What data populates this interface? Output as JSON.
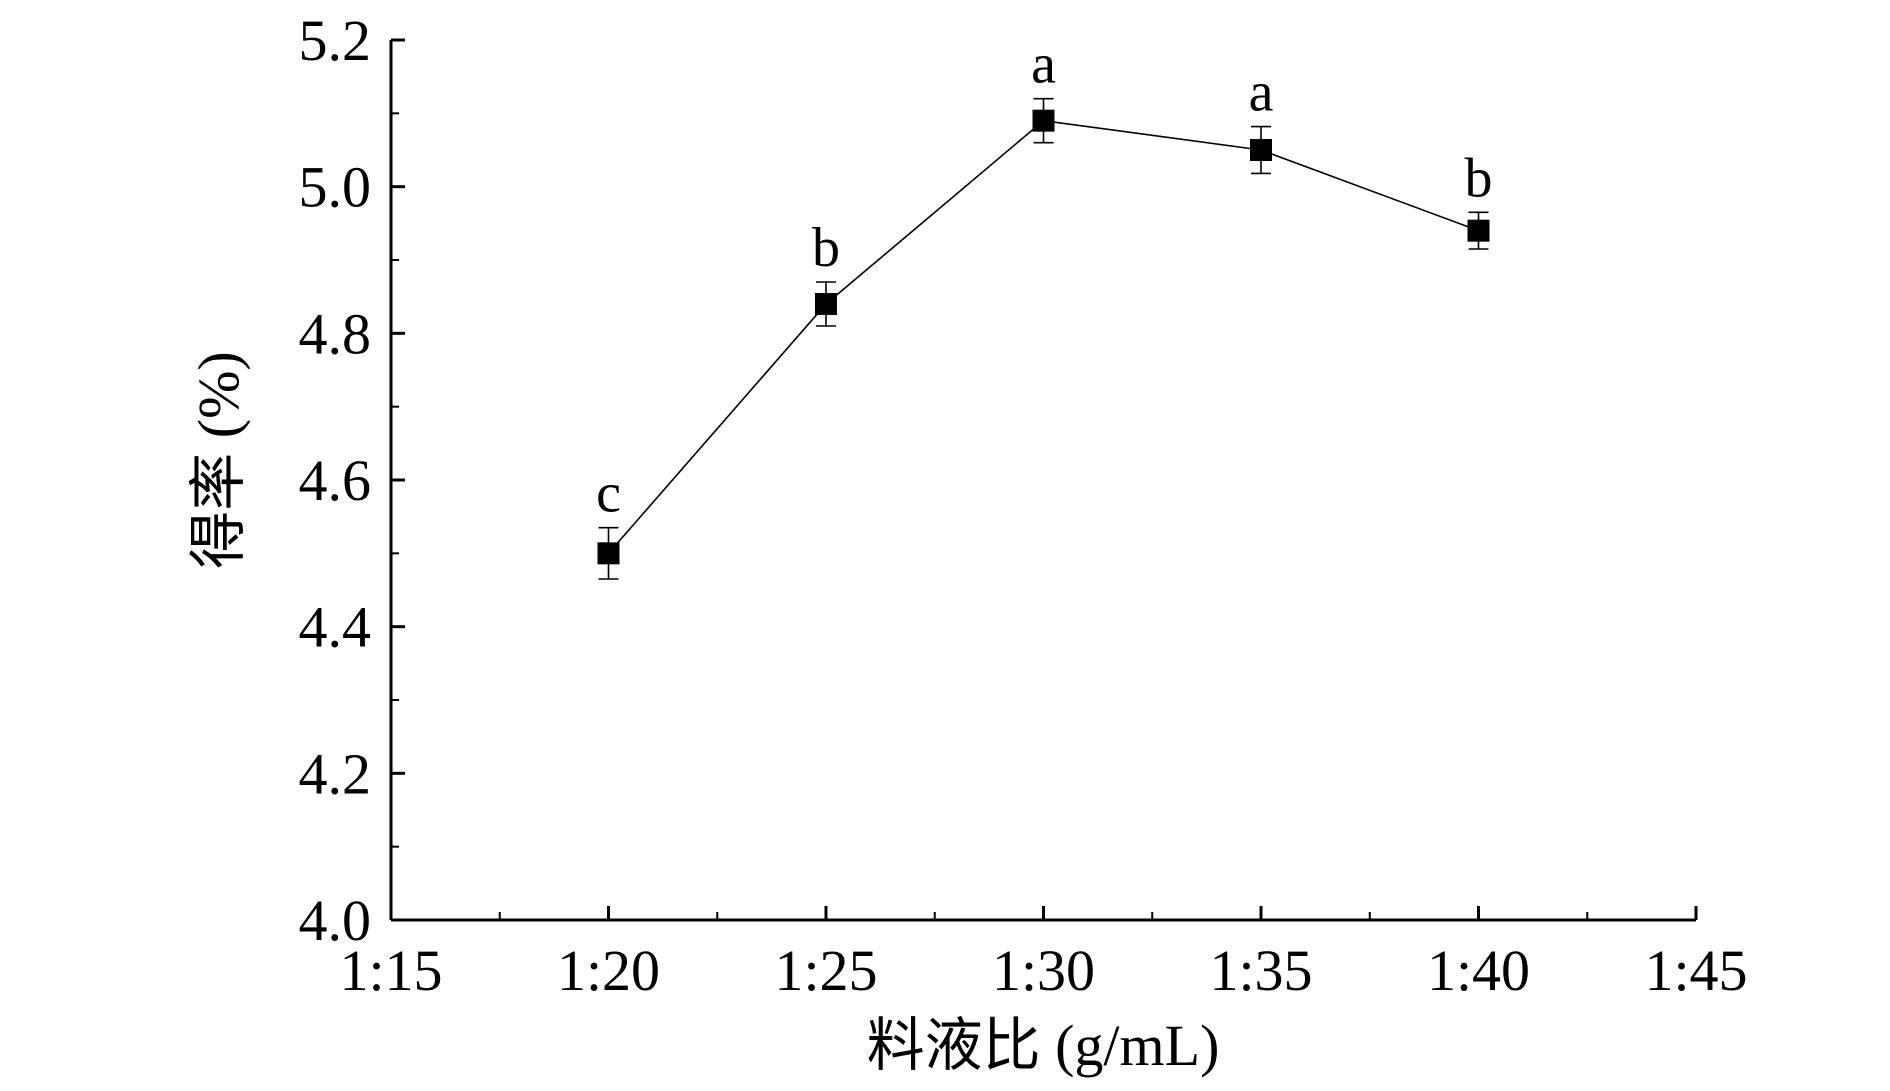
{
  "chart_data": {
    "type": "line",
    "x_categories": [
      "1:15",
      "1:20",
      "1:25",
      "1:30",
      "1:35",
      "1:40",
      "1:45"
    ],
    "y_ticks": [
      "4.0",
      "4.2",
      "4.4",
      "4.6",
      "4.8",
      "5.0",
      "5.2"
    ],
    "ylim": [
      4.0,
      5.2
    ],
    "xlabel": "料液比 (g/mL)",
    "ylabel": "得率 (%)",
    "grid": false,
    "series": [
      {
        "x": [
          "1:20",
          "1:25",
          "1:30",
          "1:35",
          "1:40"
        ],
        "values": [
          4.5,
          4.84,
          5.09,
          5.05,
          4.94
        ],
        "error": [
          0.035,
          0.03,
          0.03,
          0.032,
          0.025
        ],
        "significance": [
          "c",
          "b",
          "a",
          "a",
          "b"
        ]
      }
    ],
    "colors": {
      "line": "#000000",
      "marker": "#000000"
    }
  }
}
